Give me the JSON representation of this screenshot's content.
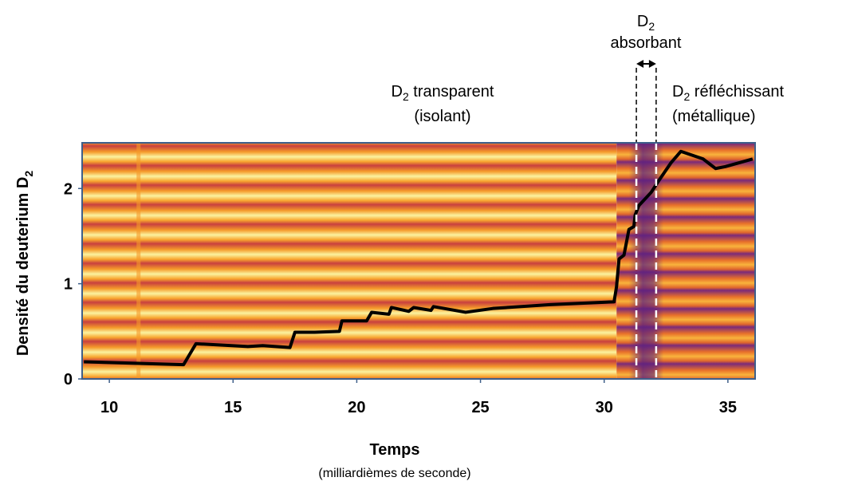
{
  "chart_data": {
    "type": "line",
    "title": "",
    "xlabel": "Temps",
    "xlabel_sub": "(milliardièmes de seconde)",
    "ylabel": "Densité du deuterium D",
    "ylabel_sub": "2",
    "xlim": [
      8.9,
      36.1
    ],
    "ylim": [
      0,
      2.48
    ],
    "xticks": [
      10,
      15,
      20,
      25,
      30,
      35
    ],
    "yticks": [
      0,
      1,
      2
    ],
    "grid": false,
    "background": "heatmap (interference fringes)",
    "line_color": "#000000",
    "axis_color": "#3e5f8a",
    "series": [
      {
        "x": [
          8.97,
          13.0,
          13.5,
          15.6,
          16.2,
          17.3,
          17.5,
          18.3,
          19.3,
          19.4,
          20.4,
          20.6,
          21.3,
          21.4,
          22.1,
          22.3,
          23.0,
          23.1,
          24.4,
          25.5,
          27.8,
          30.4,
          30.5,
          30.6,
          30.8,
          31.0,
          31.2,
          31.25,
          31.4,
          31.9,
          32.2,
          32.7,
          33.1,
          34.0,
          34.5,
          34.9,
          36.0
        ],
        "y": [
          0.18,
          0.15,
          0.37,
          0.34,
          0.35,
          0.33,
          0.49,
          0.49,
          0.5,
          0.61,
          0.61,
          0.7,
          0.68,
          0.75,
          0.71,
          0.75,
          0.72,
          0.76,
          0.7,
          0.74,
          0.78,
          0.81,
          0.97,
          1.26,
          1.3,
          1.57,
          1.6,
          1.72,
          1.82,
          1.96,
          2.08,
          2.27,
          2.39,
          2.31,
          2.21,
          2.23,
          2.31
        ]
      }
    ],
    "dashed_lines_x": [
      31.3,
      32.1
    ],
    "annotations": {
      "transparent": {
        "line1_main": "D",
        "line1_sub": "2",
        "line1_rest": " transparent",
        "line2": "(isolant)"
      },
      "absorbant": {
        "line1_main": "D",
        "line1_sub": "2",
        "line2": "absorbant"
      },
      "reflechissant": {
        "line1_main": "D",
        "line1_sub": "2",
        "line1_rest": " réfléchissant",
        "line2": "(métallique)"
      }
    }
  }
}
